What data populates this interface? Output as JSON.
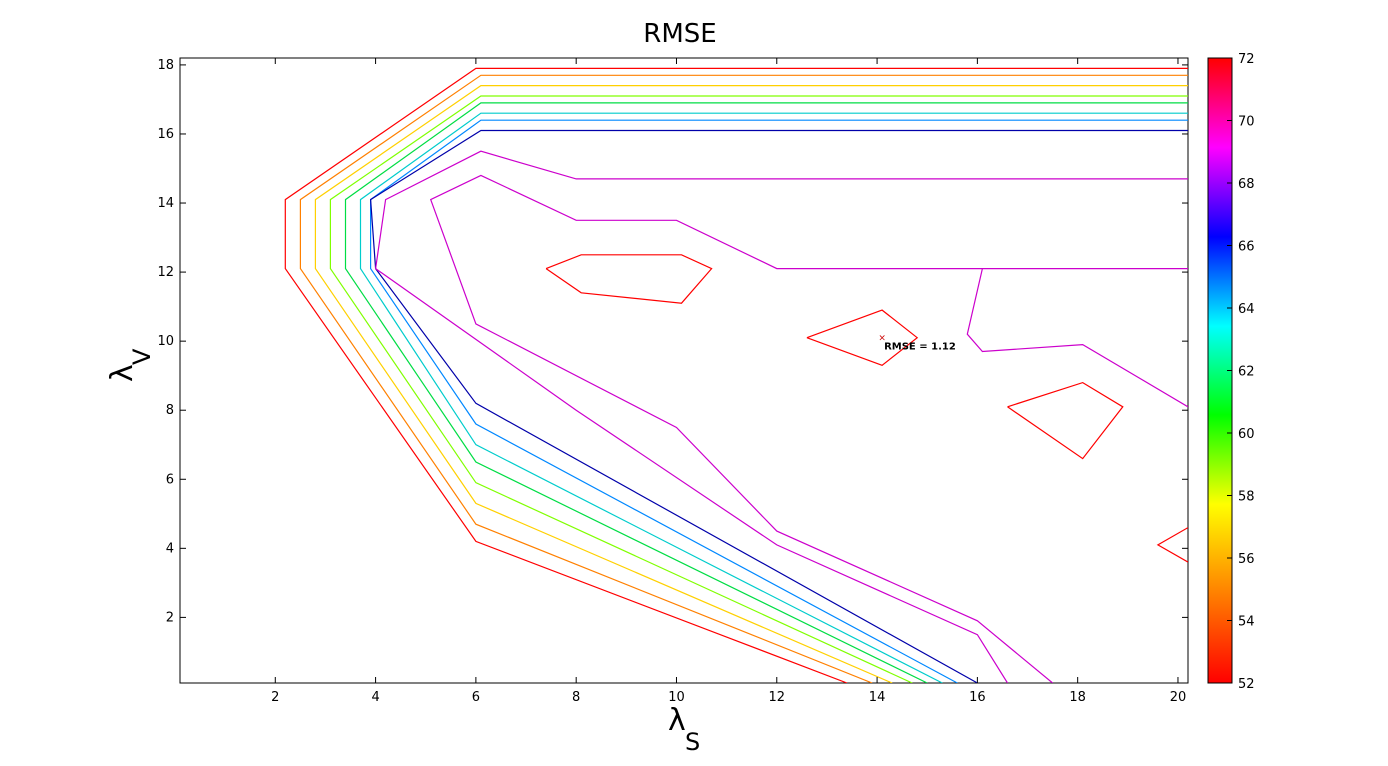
{
  "chart_data": {
    "type": "contour",
    "title": "RMSE",
    "xlabel_base": "λ",
    "xlabel_sub": "S",
    "ylabel_base": "λ",
    "ylabel_sub": "V",
    "xlim": [
      0.1,
      20.2
    ],
    "ylim": [
      0.1,
      18.2
    ],
    "xticks": [
      2,
      4,
      6,
      8,
      10,
      12,
      14,
      16,
      18,
      20
    ],
    "yticks": [
      2,
      4,
      6,
      8,
      10,
      12,
      14,
      16,
      18
    ],
    "colorbar": {
      "range": [
        52,
        72
      ],
      "ticks": [
        52,
        54,
        56,
        58,
        60,
        62,
        64,
        66,
        68,
        70,
        72
      ],
      "colors": [
        "#ff0000",
        "#ff8000",
        "#ffff00",
        "#00ff00",
        "#00ffff",
        "#0000ff",
        "#ff00ff",
        "#ff0000"
      ]
    },
    "annotation": {
      "text": "RMSE = 1.12",
      "x": 14.1,
      "y": 10.1,
      "marker": "x",
      "color": "#cc0000"
    },
    "contours": [
      {
        "level": 52,
        "color": "#ff0000",
        "points": [
          [
            13.4,
            0.1
          ],
          [
            6.0,
            4.2
          ],
          [
            2.2,
            12.1
          ],
          [
            2.2,
            14.1
          ],
          [
            6.0,
            17.9
          ],
          [
            20.2,
            17.9
          ]
        ]
      },
      {
        "level": 54,
        "color": "#ff8000",
        "points": [
          [
            13.9,
            0.1
          ],
          [
            6.0,
            4.7
          ],
          [
            2.5,
            12.1
          ],
          [
            2.5,
            14.1
          ],
          [
            6.1,
            17.7
          ],
          [
            20.2,
            17.7
          ]
        ]
      },
      {
        "level": 56,
        "color": "#ffd000",
        "points": [
          [
            14.3,
            0.1
          ],
          [
            6.0,
            5.3
          ],
          [
            2.8,
            12.1
          ],
          [
            2.8,
            14.1
          ],
          [
            6.1,
            17.4
          ],
          [
            20.2,
            17.4
          ]
        ]
      },
      {
        "level": 58,
        "color": "#80ff00",
        "points": [
          [
            14.7,
            0.1
          ],
          [
            6.0,
            5.9
          ],
          [
            3.1,
            12.1
          ],
          [
            3.1,
            14.1
          ],
          [
            6.1,
            17.1
          ],
          [
            20.2,
            17.1
          ]
        ]
      },
      {
        "level": 60,
        "color": "#00dd44",
        "points": [
          [
            15.0,
            0.1
          ],
          [
            6.0,
            6.5
          ],
          [
            3.4,
            12.1
          ],
          [
            3.4,
            14.1
          ],
          [
            6.1,
            16.9
          ],
          [
            20.2,
            16.9
          ]
        ]
      },
      {
        "level": 62,
        "color": "#00cccc",
        "points": [
          [
            15.3,
            0.1
          ],
          [
            6.0,
            7.0
          ],
          [
            3.7,
            12.1
          ],
          [
            3.7,
            14.1
          ],
          [
            6.1,
            16.6
          ],
          [
            20.2,
            16.6
          ]
        ]
      },
      {
        "level": 64,
        "color": "#0088ff",
        "points": [
          [
            15.6,
            0.1
          ],
          [
            6.0,
            7.6
          ],
          [
            3.9,
            12.1
          ],
          [
            3.9,
            14.1
          ],
          [
            6.1,
            16.4
          ],
          [
            20.2,
            16.4
          ]
        ]
      },
      {
        "level": 66,
        "color": "#0000aa",
        "points": [
          [
            16.0,
            0.1
          ],
          [
            6.0,
            8.2
          ],
          [
            4.0,
            12.1
          ],
          [
            3.9,
            14.1
          ],
          [
            6.1,
            16.1
          ],
          [
            20.2,
            16.1
          ]
        ]
      },
      {
        "level": 68,
        "color": "#cc00cc",
        "points": [
          [
            16.6,
            0.1
          ],
          [
            16.0,
            1.5
          ],
          [
            12.0,
            4.1
          ],
          [
            8.0,
            8.0
          ],
          [
            4.0,
            12.1
          ],
          [
            4.2,
            14.1
          ],
          [
            6.1,
            15.5
          ],
          [
            8.0,
            14.7
          ],
          [
            20.2,
            14.7
          ]
        ]
      },
      {
        "level": 68,
        "color": "#cc00cc",
        "points": [
          [
            17.5,
            0.1
          ],
          [
            16.0,
            1.9
          ],
          [
            12.0,
            4.5
          ],
          [
            10.0,
            7.5
          ],
          [
            6.0,
            10.5
          ],
          [
            5.1,
            14.1
          ],
          [
            6.1,
            14.8
          ],
          [
            8.0,
            13.5
          ],
          [
            10.0,
            13.5
          ],
          [
            12.0,
            12.1
          ],
          [
            20.2,
            12.1
          ]
        ]
      },
      {
        "level": 68,
        "color": "#cc00cc",
        "points": [
          [
            16.1,
            12.1
          ],
          [
            15.8,
            10.2
          ],
          [
            16.1,
            9.7
          ],
          [
            18.1,
            9.9
          ],
          [
            20.2,
            8.1
          ]
        ]
      },
      {
        "level": 70,
        "color": "#ff0000",
        "points": [
          [
            7.4,
            12.1
          ],
          [
            8.1,
            12.5
          ],
          [
            10.1,
            12.5
          ],
          [
            10.7,
            12.1
          ],
          [
            10.1,
            11.1
          ],
          [
            8.1,
            11.4
          ],
          [
            7.4,
            12.1
          ]
        ]
      },
      {
        "level": 70,
        "color": "#ff0000",
        "points": [
          [
            12.6,
            10.1
          ],
          [
            14.1,
            10.9
          ],
          [
            14.8,
            10.1
          ],
          [
            14.1,
            9.3
          ],
          [
            12.6,
            10.1
          ]
        ]
      },
      {
        "level": 70,
        "color": "#ff0000",
        "points": [
          [
            16.6,
            8.1
          ],
          [
            18.1,
            8.8
          ],
          [
            18.9,
            8.1
          ],
          [
            18.1,
            6.6
          ],
          [
            16.6,
            8.1
          ]
        ]
      },
      {
        "level": 70,
        "color": "#ff0000",
        "points": [
          [
            20.2,
            4.6
          ],
          [
            19.6,
            4.1
          ],
          [
            20.2,
            3.6
          ]
        ]
      }
    ]
  }
}
